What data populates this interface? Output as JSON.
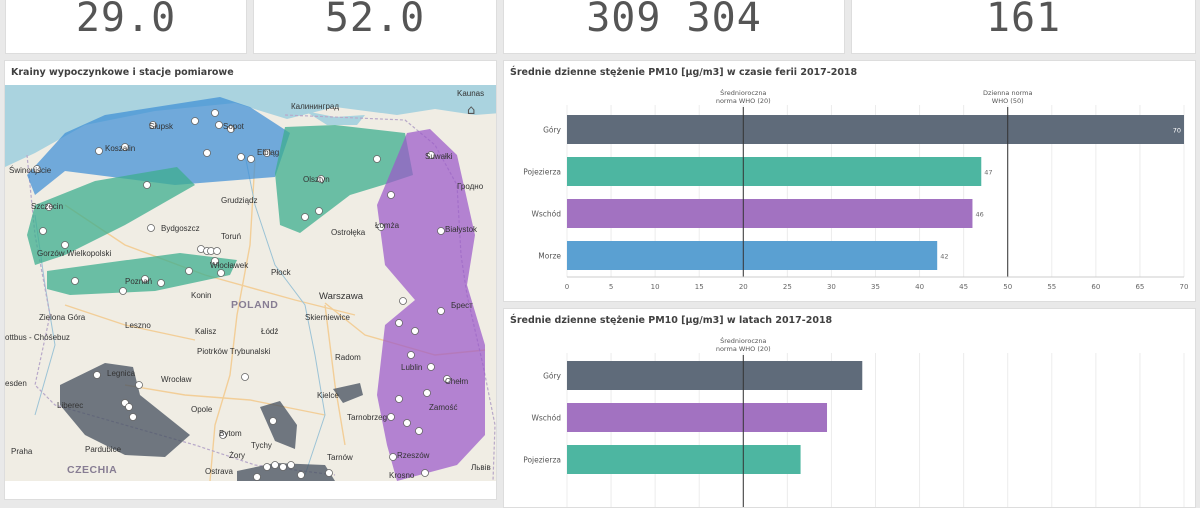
{
  "kpis": [
    "29.0",
    "52.0",
    "309 304",
    "161"
  ],
  "map_panel": {
    "title": "Krainy wypoczynkowe i stacje pomiarowe",
    "labels": {
      "kaunas": "Kaunas",
      "kaliningrad": "Калининград",
      "slupsk": "Słupsk",
      "sopot": "Sopot",
      "koszalin": "Koszalin",
      "elblag": "Elbląg",
      "suwalki": "Suwałki",
      "swinoujscie": "Świnoujście",
      "olsztyn": "Olsztyn",
      "grodno": "Гродно",
      "szczecin": "Szczecin",
      "grudziadz": "Grudziądz",
      "lomza": "Łomża",
      "bydgoszcz": "Bydgoszcz",
      "torun": "Toruń",
      "bialystok": "Białystok",
      "ostroleka": "Ostrołęka",
      "gorzow": "Gorzów Wielkopolski",
      "wloclawek": "Włocławek",
      "plock": "Płock",
      "poznan": "Poznań",
      "konin": "Konin",
      "poland": "POLAND",
      "warszawa": "Warszawa",
      "brest": "Брест",
      "zielona_gora": "Zielona Góra",
      "leszno": "Leszno",
      "skierniewice": "Skierniewice",
      "kalisz": "Kalisz",
      "lodz": "Łódź",
      "cottbus": "ottbus - Chóśebuz",
      "piotrkow": "Piotrków Trybunalski",
      "radom": "Radom",
      "lublin": "Lublin",
      "chelm": "Chełm",
      "dresden": "esden",
      "legnica": "Legnica",
      "wroclaw": "Wrocław",
      "kielce": "Kielce",
      "liberec": "Liberec",
      "opole": "Opole",
      "tarnobrzeg": "Tarnobrzeg",
      "zamosc": "Zamość",
      "bytom": "Bytom",
      "praha": "Praha",
      "pardubice": "Pardubice",
      "tychy": "Tychy",
      "zory": "Żory",
      "tarnow": "Tarnów",
      "rzeszow": "Rzeszów",
      "lviv": "Львів",
      "czechia": "CZECHIA",
      "ostrava": "Ostrava",
      "krosno": "Krosno"
    }
  },
  "chart1": {
    "title": "Średnie dzienne stężenie PM10 [µg/m3] w czasie ferii 2017-2018",
    "ref_lines": [
      {
        "label1": "Średnioroczna",
        "label2": "norma WHO (20)",
        "value": 20
      },
      {
        "label1": "Dzienna norma",
        "label2": "WHO (50)",
        "value": 50
      }
    ],
    "bars": [
      {
        "label": "Góry",
        "value": 70,
        "value_label": "70",
        "color": "#5f6b7a"
      },
      {
        "label": "Pojezierza",
        "value": 47,
        "value_label": "47",
        "color": "#4db6a1"
      },
      {
        "label": "Wschód",
        "value": 46,
        "value_label": "46",
        "color": "#a272c1"
      },
      {
        "label": "Morze",
        "value": 42,
        "value_label": "42",
        "color": "#5aa0d2"
      }
    ],
    "ticks": [
      "0",
      "5",
      "10",
      "15",
      "20",
      "25",
      "30",
      "35",
      "40",
      "45",
      "50",
      "55",
      "60",
      "65",
      "70"
    ]
  },
  "chart2": {
    "title": "Średnie dzienne stężenie PM10 [µg/m3] w latach 2017-2018",
    "ref_lines": [
      {
        "label1": "Średnioroczna",
        "label2": "norma WHO (20)",
        "value": 20
      }
    ],
    "bars": [
      {
        "label": "Góry",
        "value": 33.5,
        "color": "#5f6b7a"
      },
      {
        "label": "Wschód",
        "value": 29.5,
        "color": "#a272c1"
      },
      {
        "label": "Pojezierza",
        "value": 26.5,
        "color": "#4db6a1"
      }
    ]
  },
  "chart_data": [
    {
      "type": "bar",
      "title": "Średnie dzienne stężenie PM10 [µg/m3] w czasie ferii 2017-2018",
      "categories": [
        "Góry",
        "Pojezierza",
        "Wschód",
        "Morze"
      ],
      "values": [
        70,
        47,
        46,
        42
      ],
      "xlim": [
        0,
        70
      ],
      "reference_lines": [
        20,
        50
      ]
    },
    {
      "type": "bar",
      "title": "Średnie dzienne stężenie PM10 [µg/m3] w latach 2017-2018",
      "categories": [
        "Góry",
        "Wschód",
        "Pojezierza"
      ],
      "values": [
        33.5,
        29.5,
        26.5
      ],
      "xlim": [
        0,
        70
      ],
      "reference_lines": [
        20
      ]
    }
  ]
}
